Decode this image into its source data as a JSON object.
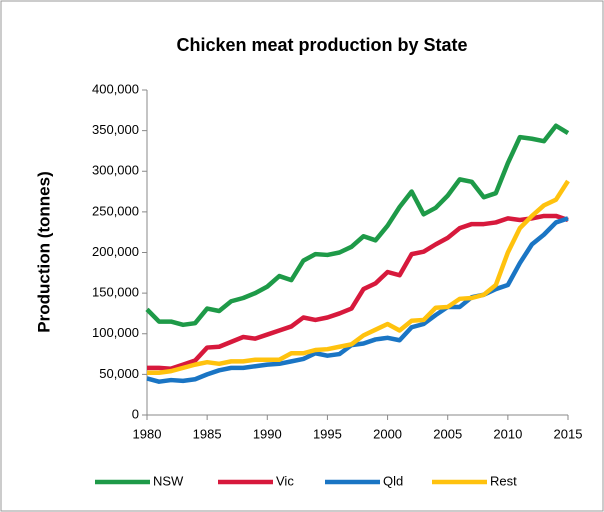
{
  "chart_data": {
    "type": "line",
    "title": "Chicken meat production by State",
    "ylabel": "Production (tonnes)",
    "x": [
      1980,
      1981,
      1982,
      1983,
      1984,
      1985,
      1986,
      1987,
      1988,
      1989,
      1990,
      1991,
      1992,
      1993,
      1994,
      1995,
      1996,
      1997,
      1998,
      1999,
      2000,
      2001,
      2002,
      2003,
      2004,
      2005,
      2006,
      2007,
      2008,
      2009,
      2010,
      2011,
      2012,
      2013,
      2014,
      2015
    ],
    "series": [
      {
        "name": "NSW",
        "color": "#1e9a48",
        "values": [
          130000,
          115000,
          115000,
          111000,
          113000,
          131000,
          128000,
          140000,
          144000,
          150000,
          158000,
          171000,
          166000,
          190000,
          198000,
          197000,
          200000,
          207000,
          220000,
          215000,
          233000,
          256000,
          275000,
          247000,
          255000,
          270000,
          290000,
          287000,
          268000,
          273000,
          310000,
          342000,
          340000,
          337000,
          356000,
          347000
        ]
      },
      {
        "name": "Vic",
        "color": "#d7193c",
        "values": [
          58000,
          58000,
          57000,
          62000,
          67000,
          83000,
          84000,
          90000,
          96000,
          94000,
          99000,
          104000,
          109000,
          120000,
          117000,
          120000,
          125000,
          131000,
          155000,
          162000,
          176000,
          172000,
          198000,
          201000,
          210000,
          218000,
          230000,
          235000,
          235000,
          237000,
          242000,
          240000,
          242000,
          245000,
          245000,
          240000
        ]
      },
      {
        "name": "Qld",
        "color": "#1a75c4",
        "values": [
          45000,
          41000,
          43000,
          42000,
          44000,
          50000,
          55000,
          58000,
          58000,
          60000,
          62000,
          63000,
          66000,
          69000,
          76000,
          73000,
          75000,
          86000,
          88000,
          93000,
          95000,
          92000,
          108000,
          112000,
          123000,
          133000,
          133000,
          145000,
          148000,
          155000,
          160000,
          187000,
          210000,
          222000,
          237000,
          242000
        ]
      },
      {
        "name": "Rest",
        "color": "#ffc20e",
        "values": [
          52000,
          52000,
          54000,
          58000,
          62000,
          65000,
          63000,
          66000,
          66000,
          68000,
          68000,
          68000,
          76000,
          76000,
          80000,
          81000,
          84000,
          87000,
          98000,
          105000,
          112000,
          104000,
          116000,
          117000,
          132000,
          133000,
          143000,
          144000,
          148000,
          160000,
          200000,
          230000,
          245000,
          258000,
          265000,
          288000
        ]
      }
    ],
    "xlim": [
      1980,
      2015
    ],
    "xticks": [
      1980,
      1985,
      1990,
      1995,
      2000,
      2005,
      2010,
      2015
    ],
    "ylim": [
      0,
      400000
    ],
    "yticks": [
      0,
      {
        "value": 50000,
        "label": "50,000"
      },
      {
        "value": 100000,
        "label": "100,000"
      },
      {
        "value": 150000,
        "label": "150,000"
      },
      {
        "value": 200000,
        "label": "200,000"
      },
      {
        "value": 250000,
        "label": "250,000"
      },
      {
        "value": 300000,
        "label": "300,000"
      },
      {
        "value": 350000,
        "label": "350,000"
      },
      {
        "value": 400000,
        "label": "400,000"
      }
    ],
    "grid": false,
    "legend": "bottom"
  }
}
